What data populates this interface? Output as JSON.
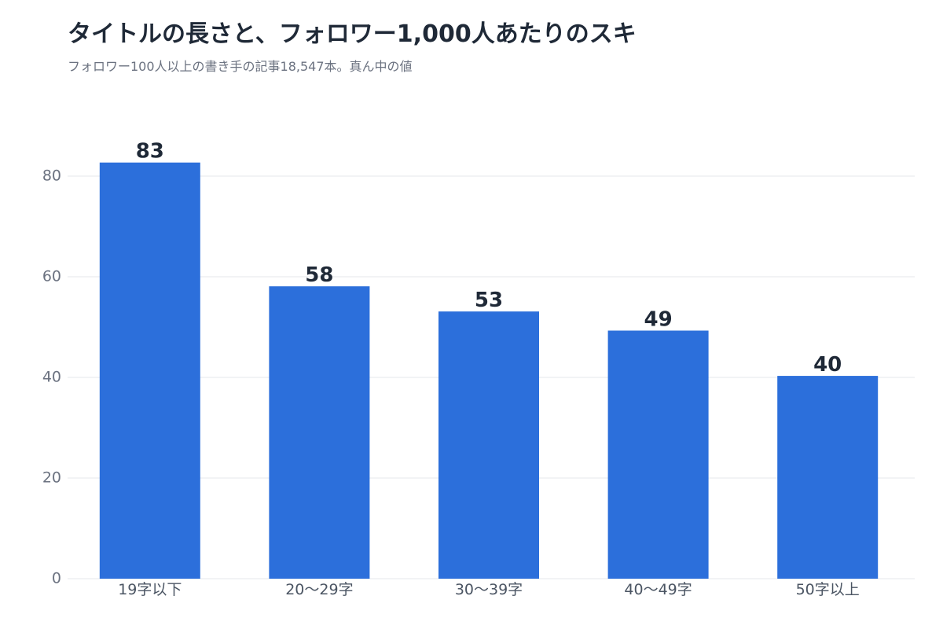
{
  "header": {
    "title": "タイトルの長さと、フォロワー1,000人あたりのスキ",
    "subtitle": "フォロワー100人以上の書き手の記事18,547本。真ん中の値"
  },
  "colors": {
    "bar": "#2c6fdb",
    "grid": "#e5e7eb",
    "title": "#1f2937",
    "subtitle": "#6b7280"
  },
  "chart_data": {
    "type": "bar",
    "title": "タイトルの長さと、フォロワー1,000人あたりのスキ",
    "subtitle": "フォロワー100人以上の書き手の記事18,547本。真ん中の値",
    "xlabel": "",
    "ylabel": "",
    "categories": [
      "19字以下",
      "20〜29字",
      "30〜39字",
      "40〜49字",
      "50字以上"
    ],
    "values": [
      82.7,
      58.1,
      53.1,
      49.3,
      40.3
    ],
    "data_labels": [
      "83",
      "58",
      "53",
      "49",
      "40"
    ],
    "ylim": [
      0,
      90
    ],
    "yticks": [
      0,
      20,
      40,
      60,
      80
    ],
    "grid": true,
    "legend": "none"
  }
}
